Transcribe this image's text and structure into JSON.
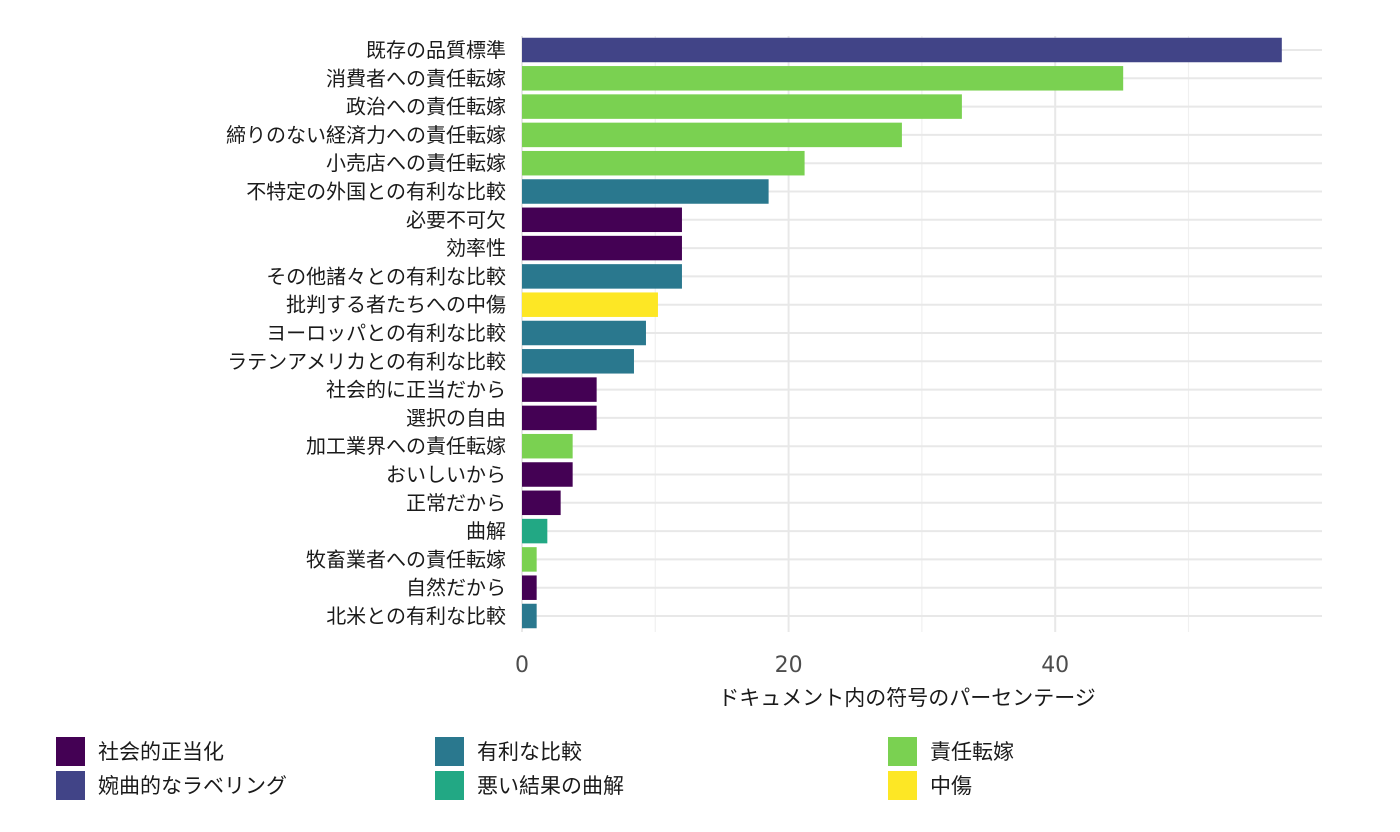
{
  "chart_data": {
    "type": "bar",
    "orientation": "horizontal",
    "title": "",
    "xlabel": "ドキュメント内の符号のパーセンテージ",
    "ylabel": "",
    "xlim": [
      0,
      60
    ],
    "x_ticks": [
      0,
      20,
      40
    ],
    "grid": true,
    "legend_position": "bottom",
    "legend": [
      {
        "name": "社会的正当化",
        "color": "#440154"
      },
      {
        "name": "婉曲的なラベリング",
        "color": "#414487"
      },
      {
        "name": "有利な比較",
        "color": "#2A788E"
      },
      {
        "name": "悪い結果の曲解",
        "color": "#22A884"
      },
      {
        "name": "責任転嫁",
        "color": "#7AD151"
      },
      {
        "name": "中傷",
        "color": "#FDE725"
      }
    ],
    "bars": [
      {
        "label": "既存の品質標準",
        "value": 57.0,
        "group": "婉曲的なラベリング"
      },
      {
        "label": "消費者への責任転嫁",
        "value": 45.1,
        "group": "責任転嫁"
      },
      {
        "label": "政治への責任転嫁",
        "value": 33.0,
        "group": "責任転嫁"
      },
      {
        "label": "締りのない経済力への責任転嫁",
        "value": 28.5,
        "group": "責任転嫁"
      },
      {
        "label": "小売店への責任転嫁",
        "value": 21.2,
        "group": "責任転嫁"
      },
      {
        "label": "不特定の外国との有利な比較",
        "value": 18.5,
        "group": "有利な比較"
      },
      {
        "label": "必要不可欠",
        "value": 12.0,
        "group": "社会的正当化"
      },
      {
        "label": "効率性",
        "value": 12.0,
        "group": "社会的正当化"
      },
      {
        "label": "その他諸々との有利な比較",
        "value": 12.0,
        "group": "有利な比較"
      },
      {
        "label": "批判する者たちへの中傷",
        "value": 10.2,
        "group": "中傷"
      },
      {
        "label": "ヨーロッパとの有利な比較",
        "value": 9.3,
        "group": "有利な比較"
      },
      {
        "label": "ラテンアメリカとの有利な比較",
        "value": 8.4,
        "group": "有利な比較"
      },
      {
        "label": "社会的に正当だから",
        "value": 5.6,
        "group": "社会的正当化"
      },
      {
        "label": "選択の自由",
        "value": 5.6,
        "group": "社会的正当化"
      },
      {
        "label": "加工業界への責任転嫁",
        "value": 3.8,
        "group": "責任転嫁"
      },
      {
        "label": "おいしいから",
        "value": 3.8,
        "group": "社会的正当化"
      },
      {
        "label": "正常だから",
        "value": 2.9,
        "group": "社会的正当化"
      },
      {
        "label": "曲解",
        "value": 1.9,
        "group": "悪い結果の曲解"
      },
      {
        "label": "牧畜業者への責任転嫁",
        "value": 1.1,
        "group": "責任転嫁"
      },
      {
        "label": "自然だから",
        "value": 1.1,
        "group": "社会的正当化"
      },
      {
        "label": "北米との有利な比較",
        "value": 1.1,
        "group": "有利な比較"
      }
    ]
  }
}
